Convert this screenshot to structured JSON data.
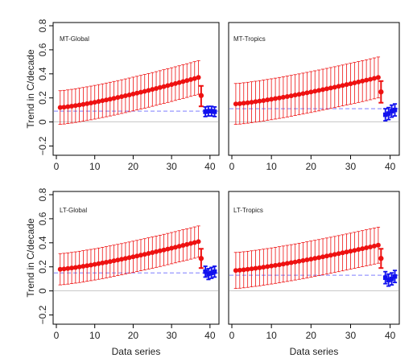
{
  "figure": {
    "ylabel": "Trend in C/decade",
    "xlabel": "Data series"
  },
  "colors": {
    "model": "#ee1111",
    "observation": "#1111ee",
    "reference_line": "#7f7fff",
    "zero_line": "#b5b5b5",
    "frame": "#000000"
  },
  "chart_data": [
    {
      "type": "scatter",
      "title": "MT-Global",
      "xlabel": "",
      "ylabel": "Trend in C/decade",
      "xlim": [
        0,
        41.5
      ],
      "ylim": [
        -0.25,
        0.8
      ],
      "xticks": [
        0,
        10,
        20,
        30,
        40
      ],
      "yticks": [
        -0.2,
        0,
        0.2,
        0.4,
        0.6,
        0.8
      ],
      "models": {
        "x_start": 1,
        "y_start": 0.12,
        "y_end": 0.37,
        "err": 0.14
      },
      "model_mean": {
        "x": 37.7,
        "y": 0.22,
        "lo": 0.13,
        "hi": 0.3
      },
      "observations": {
        "x": [
          38.8,
          39.6,
          40.4,
          41.2
        ],
        "y": [
          0.085,
          0.09,
          0.09,
          0.085
        ],
        "err": 0.04
      },
      "reference_y": 0.09
    },
    {
      "type": "scatter",
      "title": "MT-Tropics",
      "xlabel": "",
      "ylabel": "",
      "xlim": [
        0,
        41.5
      ],
      "ylim": [
        -0.25,
        0.8
      ],
      "xticks": [
        0,
        10,
        20,
        30,
        40
      ],
      "yticks": [
        -0.2,
        0,
        0.2,
        0.4,
        0.6,
        0.8
      ],
      "models": {
        "x_start": 1,
        "y_start": 0.15,
        "y_end": 0.37,
        "err": 0.17
      },
      "model_mean": {
        "x": 37.7,
        "y": 0.25,
        "lo": 0.16,
        "hi": 0.34
      },
      "observations": {
        "x": [
          38.8,
          39.6,
          40.4,
          41.2
        ],
        "y": [
          0.06,
          0.07,
          0.09,
          0.1
        ],
        "err": 0.05
      },
      "reference_y": 0.11
    },
    {
      "type": "scatter",
      "title": "LT-Global",
      "xlabel": "Data series",
      "ylabel": "Trend in C/decade",
      "xlim": [
        0,
        41.5
      ],
      "ylim": [
        -0.25,
        0.8
      ],
      "xticks": [
        0,
        10,
        20,
        30,
        40
      ],
      "yticks": [
        -0.2,
        0,
        0.2,
        0.4,
        0.6,
        0.8
      ],
      "models": {
        "x_start": 1,
        "y_start": 0.18,
        "y_end": 0.41,
        "err": 0.13
      },
      "model_mean": {
        "x": 37.7,
        "y": 0.27,
        "lo": 0.19,
        "hi": 0.35
      },
      "observations": {
        "x": [
          38.8,
          39.6,
          40.4,
          41.2
        ],
        "y": [
          0.16,
          0.14,
          0.15,
          0.16
        ],
        "err": 0.045
      },
      "reference_y": 0.15
    },
    {
      "type": "scatter",
      "title": "LT-Tropics",
      "xlabel": "Data series",
      "ylabel": "",
      "xlim": [
        0,
        41.5
      ],
      "ylim": [
        -0.25,
        0.8
      ],
      "xticks": [
        0,
        10,
        20,
        30,
        40
      ],
      "yticks": [
        -0.2,
        0,
        0.2,
        0.4,
        0.6,
        0.8
      ],
      "models": {
        "x_start": 1,
        "y_start": 0.17,
        "y_end": 0.38,
        "err": 0.15
      },
      "model_mean": {
        "x": 37.7,
        "y": 0.27,
        "lo": 0.19,
        "hi": 0.35
      },
      "observations": {
        "x": [
          38.8,
          39.6,
          40.4,
          41.2
        ],
        "y": [
          0.11,
          0.09,
          0.1,
          0.12
        ],
        "err": 0.05
      },
      "reference_y": 0.13
    }
  ]
}
